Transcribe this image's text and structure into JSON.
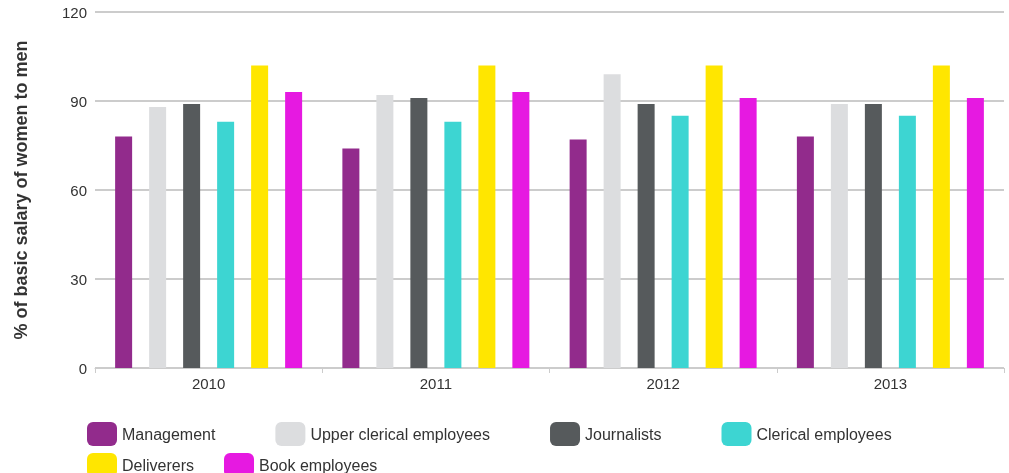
{
  "chart_data": {
    "type": "bar",
    "ylabel": "% of basic salary of women to men",
    "categories": [
      "2010",
      "2011",
      "2012",
      "2013"
    ],
    "series": [
      {
        "name": "Management",
        "color": "#922b8c",
        "values": [
          78,
          74,
          77,
          78
        ]
      },
      {
        "name": "Upper clerical employees",
        "color": "#dcdddf",
        "values": [
          88,
          92,
          99,
          89
        ]
      },
      {
        "name": "Journalists",
        "color": "#565a5c",
        "values": [
          89,
          91,
          89,
          89
        ]
      },
      {
        "name": "Clerical employees",
        "color": "#3dd5d2",
        "values": [
          83,
          83,
          85,
          85
        ]
      },
      {
        "name": "Deliverers",
        "color": "#ffe600",
        "values": [
          102,
          102,
          102,
          102
        ]
      },
      {
        "name": "Book employees",
        "color": "#e619e1",
        "values": [
          93,
          93,
          91,
          91
        ]
      }
    ],
    "ylim": [
      0,
      120
    ],
    "yticks": [
      0,
      30,
      60,
      90,
      120
    ],
    "grid": "y",
    "legend": "bottom"
  }
}
